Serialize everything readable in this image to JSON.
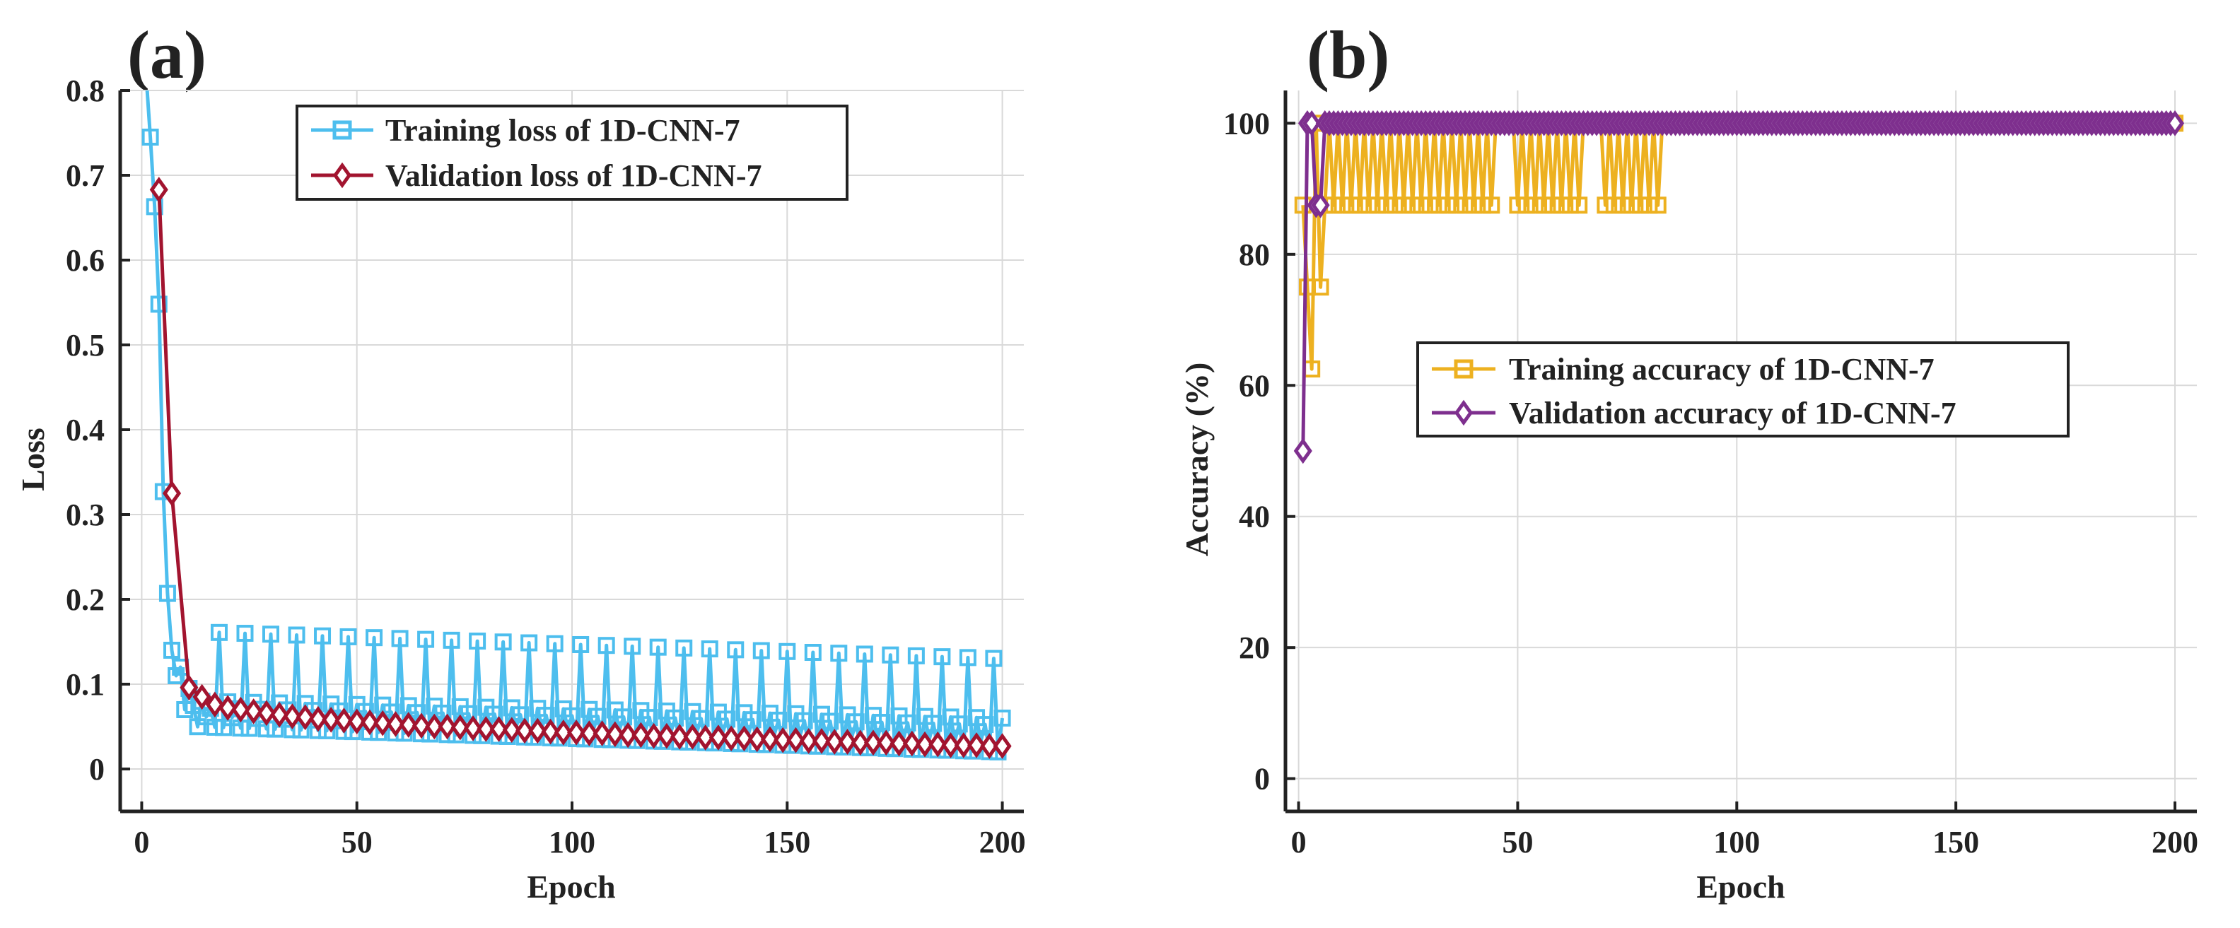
{
  "chart_data": [
    {
      "panel_label": "(a)",
      "type": "line",
      "xlabel": "Epoch",
      "ylabel": "Loss",
      "xlim": [
        -5,
        205
      ],
      "ylim": [
        -0.05,
        0.8
      ],
      "xticks": [
        0,
        50,
        100,
        150,
        200
      ],
      "yticks": [
        0,
        0.1,
        0.2,
        0.3,
        0.4,
        0.5,
        0.6,
        0.7,
        0.8
      ],
      "ytick_labels": [
        "0",
        "0.1",
        "0.2",
        "0.3",
        "0.4",
        "0.5",
        "0.6",
        "0.7",
        "0.8"
      ],
      "grid": true,
      "legend_position": "top-center",
      "series": [
        {
          "name": "Training loss of 1D-CNN-7",
          "color": "#4DBEEE",
          "marker": "square",
          "generator": "oscillating_loss",
          "params": {
            "epochs": 200,
            "initial": [
              0.82,
              0.745,
              0.663,
              0.548,
              0.327,
              0.207,
              0.14,
              0.11,
              0.12,
              0.07,
              0.095,
              0.075
            ],
            "peak_start": 0.162,
            "peak_end": 0.13,
            "peak_period": 6,
            "mid_start": 0.08,
            "mid_end": 0.06,
            "low_start": 0.05,
            "low_end": 0.02
          }
        },
        {
          "name": "Validation loss of 1D-CNN-7",
          "color": "#A2142F",
          "marker": "diamond",
          "x": [
            4,
            7,
            11,
            14,
            17,
            20,
            23,
            26,
            29,
            32,
            35,
            38,
            41,
            44,
            47,
            50,
            53,
            56,
            59,
            62,
            65,
            68,
            71,
            74,
            77,
            80,
            83,
            86,
            89,
            92,
            95,
            98,
            101,
            104,
            107,
            110,
            113,
            116,
            119,
            122,
            125,
            128,
            131,
            134,
            137,
            140,
            143,
            146,
            149,
            152,
            155,
            158,
            161,
            164,
            167,
            170,
            173,
            176,
            179,
            182,
            185,
            188,
            191,
            194,
            197,
            200
          ],
          "values": [
            0.683,
            0.325,
            0.096,
            0.085,
            0.076,
            0.072,
            0.07,
            0.068,
            0.066,
            0.064,
            0.062,
            0.061,
            0.059,
            0.058,
            0.057,
            0.056,
            0.055,
            0.054,
            0.053,
            0.052,
            0.051,
            0.05,
            0.05,
            0.049,
            0.048,
            0.047,
            0.047,
            0.046,
            0.045,
            0.045,
            0.044,
            0.043,
            0.043,
            0.042,
            0.042,
            0.041,
            0.04,
            0.04,
            0.039,
            0.039,
            0.038,
            0.038,
            0.037,
            0.037,
            0.036,
            0.036,
            0.035,
            0.035,
            0.034,
            0.034,
            0.033,
            0.033,
            0.032,
            0.032,
            0.031,
            0.031,
            0.031,
            0.03,
            0.03,
            0.029,
            0.029,
            0.028,
            0.028,
            0.028,
            0.027,
            0.027
          ]
        }
      ]
    },
    {
      "panel_label": "(b)",
      "type": "line",
      "xlabel": "Epoch",
      "ylabel": "Accuracy (%)",
      "xlim": [
        -3,
        205
      ],
      "ylim": [
        -5,
        105
      ],
      "xticks": [
        0,
        50,
        100,
        150,
        200
      ],
      "yticks": [
        0,
        20,
        40,
        60,
        80,
        100
      ],
      "ytick_labels": [
        "0",
        "20",
        "40",
        "60",
        "80",
        "100"
      ],
      "grid": true,
      "legend_position": "center",
      "series": [
        {
          "name": "Training accuracy of 1D-CNN-7",
          "color": "#EDB120",
          "marker": "square",
          "generator": "oscillating_accuracy",
          "params": {
            "epochs": 200,
            "initial": [
              87.5,
              75,
              62.5,
              100,
              75,
              87.5,
              100
            ],
            "low": 87.5,
            "high": 100,
            "oscillate_ranges": [
              [
                8,
                45
              ],
              [
                50,
                65
              ],
              [
                70,
                83
              ]
            ]
          }
        },
        {
          "name": "Validation accuracy of 1D-CNN-7",
          "color": "#7E2F8E",
          "marker": "diamond",
          "x": [
            1,
            2,
            3,
            4,
            5,
            6
          ],
          "values": [
            50,
            100,
            100,
            87.5,
            87.5,
            100
          ],
          "continue_value": 100,
          "continue_to": 200
        }
      ]
    }
  ]
}
